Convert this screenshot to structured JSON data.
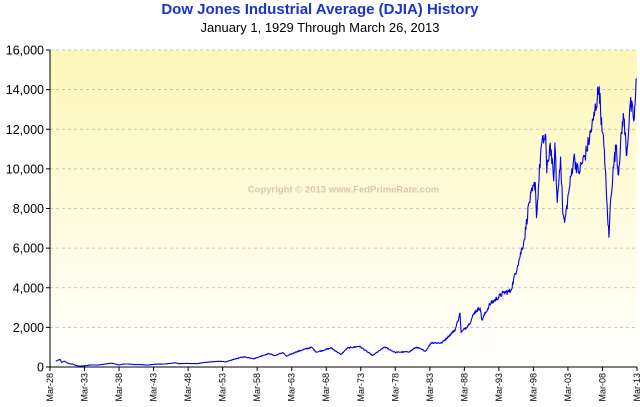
{
  "chart_data": {
    "type": "line",
    "title": "Dow Jones Industrial Average (DJIA) History",
    "subtitle": "January 1, 1929  Through  March 26, 2013",
    "watermark": "Copyright © 2013 www.FedPrimeRate.com",
    "xlabel": "",
    "ylabel": "",
    "x_range": [
      "1929-01-01",
      "2013-03-26"
    ],
    "ylim": [
      0,
      16000
    ],
    "yticks": [
      0,
      2000,
      4000,
      6000,
      8000,
      10000,
      12000,
      14000,
      16000
    ],
    "ytick_labels": [
      "0",
      "2,000",
      "4,000",
      "6,000",
      "8,000",
      "10,000",
      "12,000",
      "14,000",
      "16,000"
    ],
    "xtick_labels": [
      "Mar-28",
      "Mar-33",
      "Mar-38",
      "Mar-43",
      "Mar-48",
      "Mar-53",
      "Mar-58",
      "Mar-63",
      "Mar-68",
      "Mar-73",
      "Mar-78",
      "Mar-83",
      "Mar-88",
      "Mar-93",
      "Mar-98",
      "Mar-03",
      "Mar-08",
      "Mar-13"
    ],
    "grid": true,
    "line_color": "#0000ee",
    "background_gradient": [
      "#fdf8b8",
      "#ffffff"
    ],
    "series": [
      {
        "x": [
          "1929-01",
          "1929-09",
          "1929-11",
          "1930-04",
          "1930-12",
          "1931-06",
          "1931-12",
          "1932-07",
          "1933-03",
          "1934-02",
          "1935-03",
          "1936-06",
          "1937-03",
          "1938-03",
          "1938-11",
          "1939-09",
          "1940-06",
          "1941-06",
          "1942-04",
          "1943-06",
          "1944-12",
          "1946-05",
          "1946-10",
          "1947-12",
          "1949-06",
          "1950-06",
          "1951-12",
          "1953-01",
          "1953-09",
          "1954-12",
          "1956-04",
          "1957-10",
          "1959-01",
          "1959-12",
          "1960-10",
          "1961-12",
          "1962-06",
          "1963-12",
          "1965-02",
          "1966-02",
          "1966-10",
          "1968-12",
          "1970-05",
          "1971-04",
          "1973-01",
          "1974-12",
          "1976-09",
          "1978-03",
          "1980-04",
          "1981-04",
          "1982-08",
          "1983-06",
          "1984-12",
          "1985-12",
          "1986-12",
          "1987-08",
          "1987-10",
          "1988-12",
          "1989-10",
          "1990-07",
          "1990-10",
          "1991-12",
          "1993-12",
          "1994-12",
          "1995-12",
          "1996-12",
          "1997-08",
          "1998-07",
          "1998-09",
          "1999-05",
          "2000-01",
          "2000-03",
          "2000-09",
          "2001-03",
          "2001-05",
          "2001-09",
          "2002-03",
          "2002-07",
          "2002-10",
          "2003-06",
          "2004-02",
          "2004-10",
          "2005-12",
          "2006-12",
          "2007-10",
          "2008-03",
          "2008-07",
          "2008-11",
          "2009-03",
          "2009-06",
          "2009-12",
          "2010-04",
          "2010-07",
          "2011-04",
          "2011-10",
          "2012-04",
          "2012-11",
          "2013-03"
        ],
        "values": [
          300,
          381,
          230,
          294,
          165,
          150,
          78,
          41,
          60,
          105,
          100,
          160,
          190,
          100,
          150,
          150,
          120,
          125,
          95,
          140,
          152,
          212,
          165,
          180,
          165,
          225,
          270,
          290,
          255,
          400,
          515,
          420,
          580,
          680,
          570,
          730,
          540,
          770,
          900,
          990,
          750,
          960,
          630,
          950,
          1050,
          580,
          1010,
          740,
          770,
          1000,
          800,
          1230,
          1210,
          1550,
          1900,
          2720,
          1740,
          2170,
          2790,
          2990,
          2370,
          3170,
          3750,
          3830,
          5120,
          6450,
          8300,
          9300,
          7540,
          11100,
          11720,
          9800,
          11300,
          9400,
          11300,
          8300,
          10600,
          7700,
          7300,
          9000,
          10600,
          9800,
          10900,
          12460,
          14160,
          11900,
          11000,
          8500,
          6550,
          8500,
          10400,
          11200,
          9700,
          12800,
          10700,
          13300,
          12500,
          14560
        ]
      }
    ]
  }
}
